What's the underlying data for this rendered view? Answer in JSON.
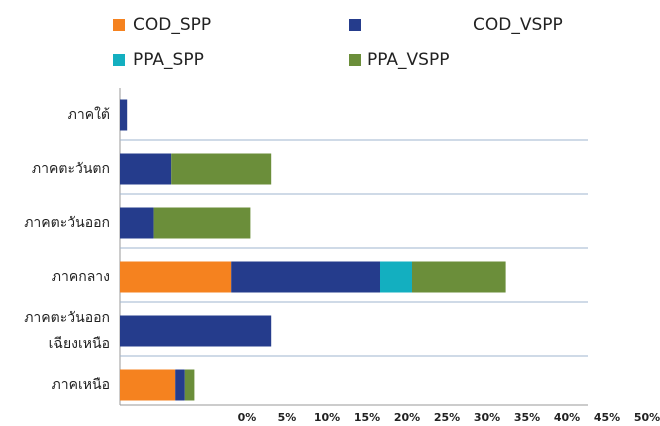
{
  "chart_data": {
    "type": "stacked_bar_horizontal",
    "categories": [
      "ภาคใต้",
      "ภาคตะวันตก",
      "ภาคตะวันออก",
      "ภาคกลาง",
      "ภาคตะวันออก\nเฉียงเหนือ",
      "ภาคเหนือ"
    ],
    "series": [
      {
        "name": "COD_SPP",
        "color": "#f5821f",
        "values": [
          0,
          0,
          0,
          13.9,
          0,
          6.9
        ]
      },
      {
        "name": "COD_VSPP",
        "color": "#253c8c",
        "values": [
          0.9,
          6.4,
          4.2,
          18.6,
          18.9,
          1.2
        ]
      },
      {
        "name": "PPA_SPP",
        "color": "#13afc0",
        "values": [
          0,
          0,
          0,
          4.0,
          0,
          0
        ]
      },
      {
        "name": "PPA_VSPP",
        "color": "#6b8e3a",
        "values": [
          0,
          12.5,
          12.1,
          11.7,
          0,
          1.2
        ]
      }
    ],
    "xlim": [
      0,
      50
    ],
    "xticks": [
      {
        "value": 0,
        "label": "0%"
      },
      {
        "value": 5,
        "label": "5%"
      },
      {
        "value": 10,
        "label": "10%"
      },
      {
        "value": 15,
        "label": "15%"
      },
      {
        "value": 20,
        "label": "20%"
      },
      {
        "value": 25,
        "label": "25%"
      },
      {
        "value": 30,
        "label": "30%"
      },
      {
        "value": 35,
        "label": "35%"
      },
      {
        "value": 40,
        "label": "40%"
      },
      {
        "value": 45,
        "label": "45%"
      },
      {
        "value": 50,
        "label": "50%"
      }
    ]
  }
}
